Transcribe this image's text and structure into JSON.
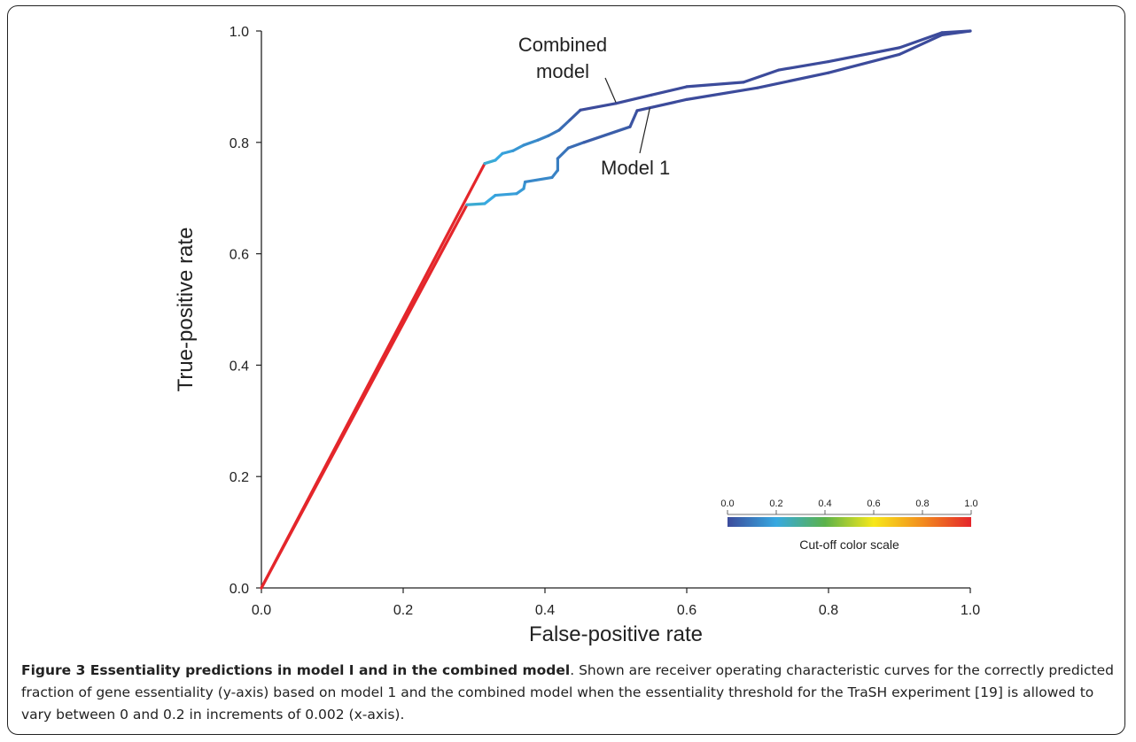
{
  "chart_data": {
    "type": "line",
    "xlabel": "False-positive rate",
    "ylabel": "True-positive rate",
    "xlim": [
      0,
      1
    ],
    "ylim": [
      0,
      1
    ],
    "xticks": [
      "0.0",
      "0.2",
      "0.4",
      "0.6",
      "0.8",
      "1.0"
    ],
    "yticks": [
      "0.0",
      "0.2",
      "0.4",
      "0.6",
      "0.8",
      "1.0"
    ],
    "grid": false,
    "legend": "none",
    "series": [
      {
        "name": "Combined model",
        "points": [
          {
            "x": 0.0,
            "y": 0.0,
            "c": 1.0
          },
          {
            "x": 0.315,
            "y": 0.762,
            "c": 1.0
          },
          {
            "x": 0.33,
            "y": 0.768,
            "c": 0.22
          },
          {
            "x": 0.34,
            "y": 0.78,
            "c": 0.2
          },
          {
            "x": 0.355,
            "y": 0.785,
            "c": 0.18
          },
          {
            "x": 0.37,
            "y": 0.795,
            "c": 0.16
          },
          {
            "x": 0.39,
            "y": 0.804,
            "c": 0.14
          },
          {
            "x": 0.405,
            "y": 0.812,
            "c": 0.12
          },
          {
            "x": 0.42,
            "y": 0.822,
            "c": 0.1
          },
          {
            "x": 0.435,
            "y": 0.84,
            "c": 0.07
          },
          {
            "x": 0.45,
            "y": 0.858,
            "c": 0.04
          },
          {
            "x": 0.5,
            "y": 0.87,
            "c": 0.0
          },
          {
            "x": 0.55,
            "y": 0.885,
            "c": 0.0
          },
          {
            "x": 0.6,
            "y": 0.9,
            "c": 0.0
          },
          {
            "x": 0.68,
            "y": 0.908,
            "c": 0.0
          },
          {
            "x": 0.73,
            "y": 0.93,
            "c": 0.0
          },
          {
            "x": 0.8,
            "y": 0.945,
            "c": 0.0
          },
          {
            "x": 0.9,
            "y": 0.97,
            "c": 0.0
          },
          {
            "x": 0.96,
            "y": 0.997,
            "c": 0.0
          },
          {
            "x": 1.0,
            "y": 1.0,
            "c": 0.0
          }
        ]
      },
      {
        "name": "Model 1",
        "points": [
          {
            "x": 0.0,
            "y": 0.0,
            "c": 1.0
          },
          {
            "x": 0.29,
            "y": 0.688,
            "c": 1.0
          },
          {
            "x": 0.315,
            "y": 0.69,
            "c": 0.22
          },
          {
            "x": 0.33,
            "y": 0.705,
            "c": 0.2
          },
          {
            "x": 0.36,
            "y": 0.708,
            "c": 0.18
          },
          {
            "x": 0.37,
            "y": 0.717,
            "c": 0.17
          },
          {
            "x": 0.372,
            "y": 0.729,
            "c": 0.16
          },
          {
            "x": 0.41,
            "y": 0.737,
            "c": 0.13
          },
          {
            "x": 0.418,
            "y": 0.75,
            "c": 0.12
          },
          {
            "x": 0.418,
            "y": 0.771,
            "c": 0.11
          },
          {
            "x": 0.433,
            "y": 0.79,
            "c": 0.09
          },
          {
            "x": 0.455,
            "y": 0.8,
            "c": 0.07
          },
          {
            "x": 0.52,
            "y": 0.828,
            "c": 0.04
          },
          {
            "x": 0.53,
            "y": 0.857,
            "c": 0.02
          },
          {
            "x": 0.6,
            "y": 0.877,
            "c": 0.0
          },
          {
            "x": 0.7,
            "y": 0.898,
            "c": 0.0
          },
          {
            "x": 0.8,
            "y": 0.925,
            "c": 0.0
          },
          {
            "x": 0.9,
            "y": 0.958,
            "c": 0.0
          },
          {
            "x": 0.96,
            "y": 0.993,
            "c": 0.0
          },
          {
            "x": 1.0,
            "y": 1.0,
            "c": 0.0
          }
        ]
      }
    ],
    "annotations": [
      {
        "text_lines": [
          "Combined",
          "model"
        ],
        "series": "Combined model"
      },
      {
        "text_lines": [
          "Model 1"
        ],
        "series": "Model 1"
      }
    ],
    "colorbar": {
      "title": "Cut-off color scale",
      "ticks": [
        "0.0",
        "0.2",
        "0.4",
        "0.6",
        "0.8",
        "1.0"
      ],
      "colors": [
        "#3c4b9b",
        "#37a9e1",
        "#5bb24a",
        "#f7e81a",
        "#f28c1e",
        "#e4262b"
      ]
    }
  },
  "caption": {
    "title": "Figure 3 Essentiality predictions in model I and in the combined model",
    "body": ". Shown are receiver operating characteristic curves for the correctly predicted fraction of gene essentiality (y-axis) based on model 1 and the combined model when the essentiality threshold for the TraSH experiment [19] is allowed to vary between 0 and 0.2 in increments of 0.002 (x-axis)."
  }
}
